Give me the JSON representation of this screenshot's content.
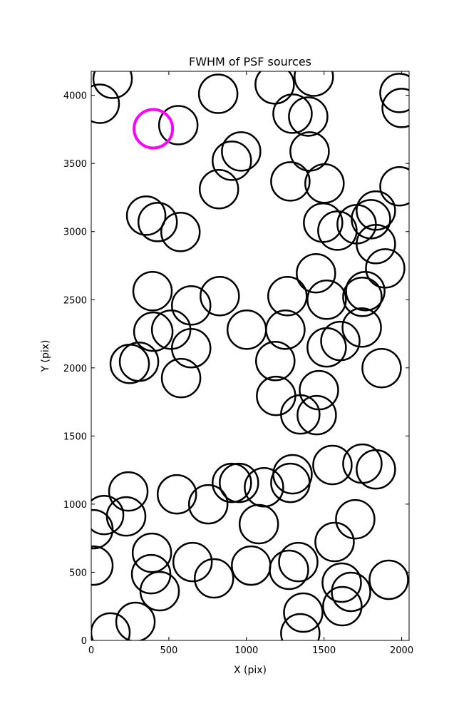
{
  "chart_data": {
    "type": "scatter",
    "title": "FWHM of PSF sources",
    "x_label": "X (pix)",
    "y_label": "Y (pix)",
    "xlim": [
      0,
      2048
    ],
    "ylim": [
      0,
      4176
    ],
    "xticks": [
      0,
      500,
      1000,
      1500,
      2000
    ],
    "yticks": [
      0,
      500,
      1000,
      1500,
      2000,
      2500,
      3000,
      3500,
      4000
    ],
    "radius": 124,
    "series": [
      {
        "color": "#000000",
        "line_width": 2.5,
        "x": [
          55,
          138,
          561,
          818,
          1182,
          1297,
          1434,
          1398,
          1986,
          2000,
          966,
          906,
          1407,
          823,
          1283,
          1503,
          1986,
          354,
          428,
          575,
          1494,
          1586,
          1710,
          1834,
          1802,
          1834,
          1894,
          1448,
          395,
          644,
          828,
          1264,
          1517,
          1766,
          1747,
          400,
          515,
          644,
          1002,
          1251,
          1517,
          1605,
          1743,
          248,
          308,
          579,
          1186,
          1871,
          1191,
          1467,
          1347,
          1453,
          239,
          83,
          225,
          14,
          552,
          754,
          906,
          952,
          1113,
          1297,
          1283,
          1554,
          1747,
          1834,
          1080,
          1701,
          1568,
          391,
          653,
          14,
          386,
          441,
          791,
          1030,
          1274,
          1334,
          1614,
          1674,
          1618,
          1917,
          285,
          124,
          1366,
          1347
        ],
        "y": [
          3938,
          4121,
          3781,
          4011,
          4080,
          3865,
          4137,
          3844,
          4017,
          3907,
          3588,
          3520,
          3588,
          3311,
          3368,
          3353,
          3332,
          3117,
          3070,
          2997,
          3065,
          3007,
          3054,
          3154,
          3091,
          2908,
          2730,
          2694,
          2563,
          2458,
          2526,
          2526,
          2500,
          2563,
          2521,
          2265,
          2280,
          2144,
          2280,
          2280,
          2150,
          2197,
          2296,
          2029,
          2045,
          1925,
          2050,
          1998,
          1794,
          1836,
          1658,
          1653,
          1093,
          920,
          910,
          816,
          1072,
          999,
          1156,
          1156,
          1124,
          1219,
          1156,
          1287,
          1297,
          1255,
          853,
          889,
          722,
          643,
          575,
          549,
          486,
          361,
          455,
          549,
          518,
          575,
          424,
          356,
          251,
          445,
          136,
          58,
          204,
          52
        ]
      },
      {
        "color": "#ff00ff",
        "line_width": 4,
        "x": [
          400
        ],
        "y": [
          3755
        ]
      }
    ]
  }
}
